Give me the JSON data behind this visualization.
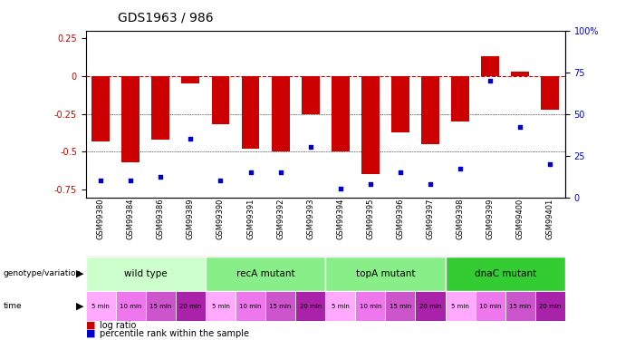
{
  "title": "GDS1963 / 986",
  "samples": [
    "GSM99380",
    "GSM99384",
    "GSM99386",
    "GSM99389",
    "GSM99390",
    "GSM99391",
    "GSM99392",
    "GSM99393",
    "GSM99394",
    "GSM99395",
    "GSM99396",
    "GSM99397",
    "GSM99398",
    "GSM99399",
    "GSM99400",
    "GSM99401"
  ],
  "log_ratios": [
    -0.43,
    -0.57,
    -0.42,
    -0.05,
    -0.32,
    -0.48,
    -0.5,
    -0.25,
    -0.5,
    -0.65,
    -0.37,
    -0.45,
    -0.3,
    0.13,
    0.03,
    -0.22
  ],
  "percentile_ranks": [
    10,
    10,
    12,
    35,
    10,
    15,
    15,
    30,
    5,
    8,
    15,
    8,
    17,
    70,
    42,
    20
  ],
  "genotype_groups": [
    {
      "label": "wild type",
      "start": 0,
      "end": 3,
      "color": "#ccffcc"
    },
    {
      "label": "recA mutant",
      "start": 4,
      "end": 7,
      "color": "#88ee88"
    },
    {
      "label": "topA mutant",
      "start": 8,
      "end": 11,
      "color": "#88ee88"
    },
    {
      "label": "dnaC mutant",
      "start": 12,
      "end": 15,
      "color": "#33cc33"
    }
  ],
  "time_labels": [
    "5 min",
    "10 min",
    "15 min",
    "20 min",
    "5 min",
    "10 min",
    "15 min",
    "20 min",
    "5 min",
    "10 min",
    "15 min",
    "20 min",
    "5 min",
    "10 min",
    "15 min",
    "20 min"
  ],
  "time_colors": [
    "#ffaaff",
    "#ee77ee",
    "#cc55cc",
    "#aa22aa",
    "#ffaaff",
    "#ee77ee",
    "#cc55cc",
    "#aa22aa",
    "#ffaaff",
    "#ee77ee",
    "#cc55cc",
    "#aa22aa",
    "#ffaaff",
    "#ee77ee",
    "#cc55cc",
    "#aa22aa"
  ],
  "bar_color": "#cc0000",
  "dot_color": "#0000cc",
  "ylim_left": [
    -0.8,
    0.3
  ],
  "ylim_right": [
    0,
    100
  ],
  "yticks_left": [
    -0.75,
    -0.5,
    -0.25,
    0,
    0.25
  ],
  "yticks_right": [
    0,
    25,
    50,
    75,
    100
  ],
  "hline_y": 0,
  "dotted_lines": [
    -0.25,
    -0.5
  ],
  "label_bg_color": "#c8c8c8",
  "background_color": "#ffffff"
}
